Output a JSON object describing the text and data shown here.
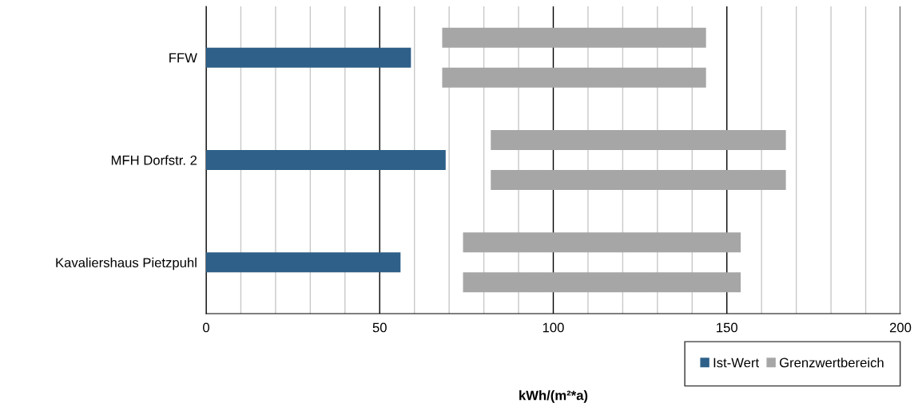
{
  "chart_data": {
    "type": "bar",
    "orientation": "horizontal",
    "categories": [
      "FFW",
      "MFH Dorfstr. 2",
      "Kavaliershaus Pietzpuhl"
    ],
    "series": [
      {
        "name": "Ist-Wert",
        "color": "#2e6089",
        "values": [
          59,
          69,
          56
        ]
      },
      {
        "name": "Grenzwertbereich",
        "color": "#a6a6a6",
        "values": [
          76,
          85,
          80
        ],
        "base": [
          68,
          82,
          74
        ]
      },
      {
        "color": "#a6a6a6",
        "values": [
          76,
          85,
          80
        ],
        "base": [
          68,
          82,
          74
        ]
      }
    ],
    "xlim": [
      0,
      200
    ],
    "xticks": [
      0,
      {
        "value": 10,
        "label": null
      },
      {
        "value": 20,
        "label": null
      },
      {
        "value": 30,
        "label": null
      },
      {
        "value": 40,
        "label": null
      },
      50,
      {
        "value": 60,
        "label": null
      },
      {
        "value": 70,
        "label": null
      },
      {
        "value": 80,
        "label": null
      },
      {
        "value": 90,
        "label": null
      },
      100,
      {
        "value": 110,
        "label": null
      },
      {
        "value": 120,
        "label": null
      },
      {
        "value": 130,
        "label": null
      },
      {
        "value": 140,
        "label": null
      },
      150,
      {
        "value": 160,
        "label": null
      },
      {
        "value": 170,
        "label": null
      },
      {
        "value": 180,
        "label": null
      },
      {
        "value": 190,
        "label": null
      },
      200
    ],
    "xlabel": "kWh/(m²*a)",
    "grid": "x",
    "legend": "bottom right"
  }
}
